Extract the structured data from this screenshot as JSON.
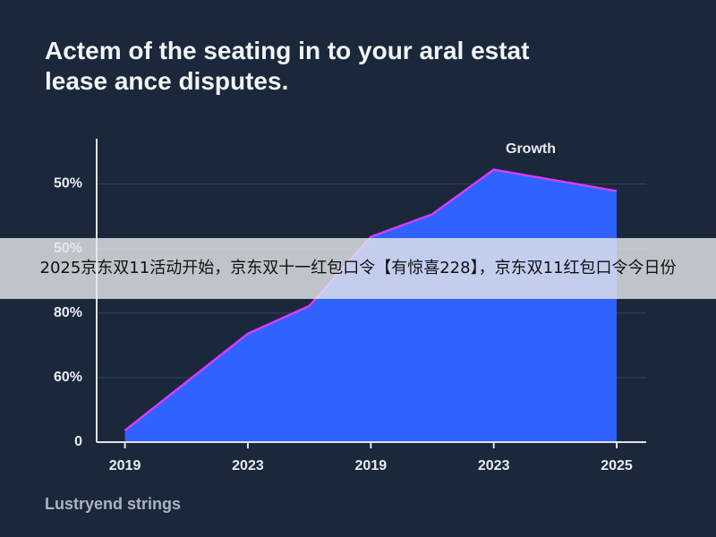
{
  "chart_data": {
    "type": "area",
    "title": "Actem of the seating in to your aral estat lease ance disputes.",
    "annotation": "Growth",
    "footer": "Lustryend strings",
    "x": [
      0,
      1,
      1.5,
      2,
      2.5,
      3,
      4
    ],
    "values": [
      0.18,
      1.68,
      2.11,
      3.18,
      3.53,
      4.22,
      3.89
    ],
    "color": "#2f62ff",
    "line_color": "#d63cff",
    "xlim": [
      -0.23,
      4.24
    ],
    "xticks": [
      {
        "value": 0,
        "label": "2019"
      },
      {
        "value": 1,
        "label": "2023"
      },
      {
        "value": 2,
        "label": "2019"
      },
      {
        "value": 3,
        "label": "2023"
      },
      {
        "value": 4,
        "label": "2025"
      }
    ],
    "ylim": [
      0,
      4.7
    ],
    "yticks": [
      {
        "value": 0,
        "label": "0"
      },
      {
        "value": 1,
        "label": "60%"
      },
      {
        "value": 2,
        "label": "80%"
      },
      {
        "value": 3,
        "label": "50%"
      },
      {
        "value": 4,
        "label": "50%"
      }
    ],
    "grid": true
  },
  "banner": "2025京东双11活动开始，京东双十一红包口令【有惊喜228】，京东双11红包口令今日份"
}
